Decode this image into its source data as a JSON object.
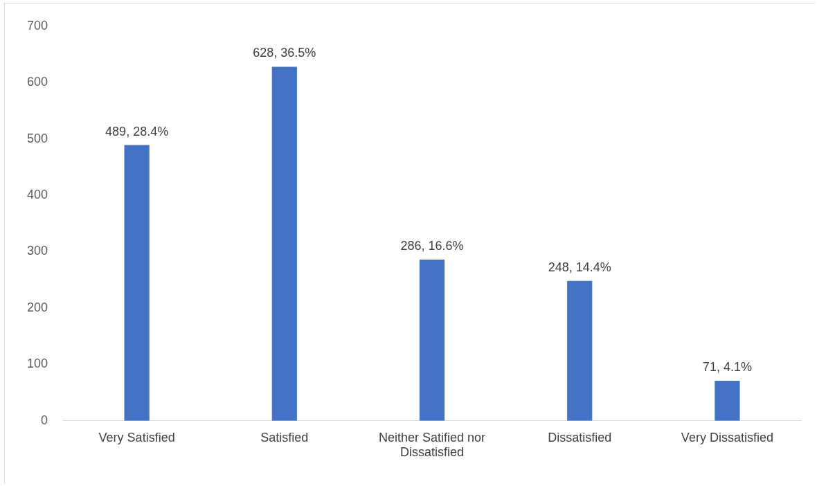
{
  "chart_data": {
    "type": "bar",
    "categories": [
      "Very Satisfied",
      "Satisfied",
      "Neither Satified nor Dissatisfied",
      "Dissatisfied",
      "Very Dissatisfied"
    ],
    "values": [
      489,
      628,
      286,
      248,
      71
    ],
    "color": "#4472c4",
    "value_labels": [
      "489, 28.4%",
      "628, 36.5%",
      "286, 16.6%",
      "248, 14.4%",
      "71, 4.1%"
    ],
    "ylim": [
      0,
      700
    ],
    "yticks": [
      0,
      100,
      200,
      300,
      400,
      500,
      600,
      700
    ],
    "grid": false,
    "legend": false
  }
}
